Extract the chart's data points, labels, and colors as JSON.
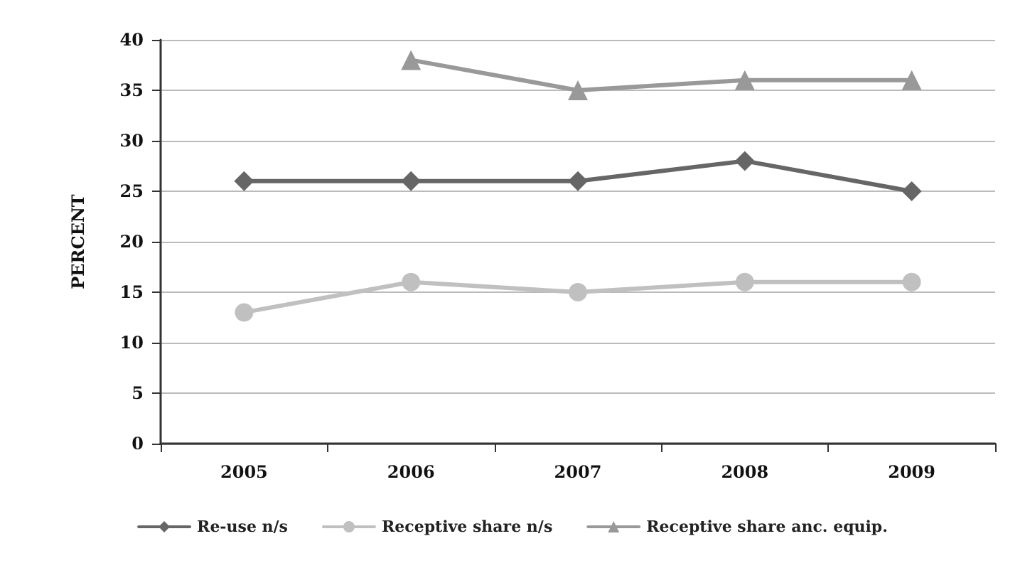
{
  "chart_data": {
    "type": "line",
    "ylabel": "PERCENT",
    "categories": [
      "2005",
      "2006",
      "2007",
      "2008",
      "2009"
    ],
    "series": [
      {
        "name": "Re-use n/s",
        "color": "#666666",
        "marker": "diamond",
        "values": [
          26,
          26,
          26,
          28,
          25
        ]
      },
      {
        "name": "Receptive share n/s",
        "color": "#c0c0c0",
        "marker": "circle",
        "values": [
          13,
          16,
          15,
          16,
          16
        ]
      },
      {
        "name": "Receptive share anc. equip.",
        "color": "#999999",
        "marker": "triangle",
        "values": [
          null,
          38,
          35,
          36,
          36
        ]
      }
    ],
    "ylim": [
      0,
      40
    ],
    "yticks": [
      0,
      5,
      10,
      15,
      20,
      25,
      30,
      35,
      40
    ],
    "grid": "y",
    "legend": "bottom"
  }
}
